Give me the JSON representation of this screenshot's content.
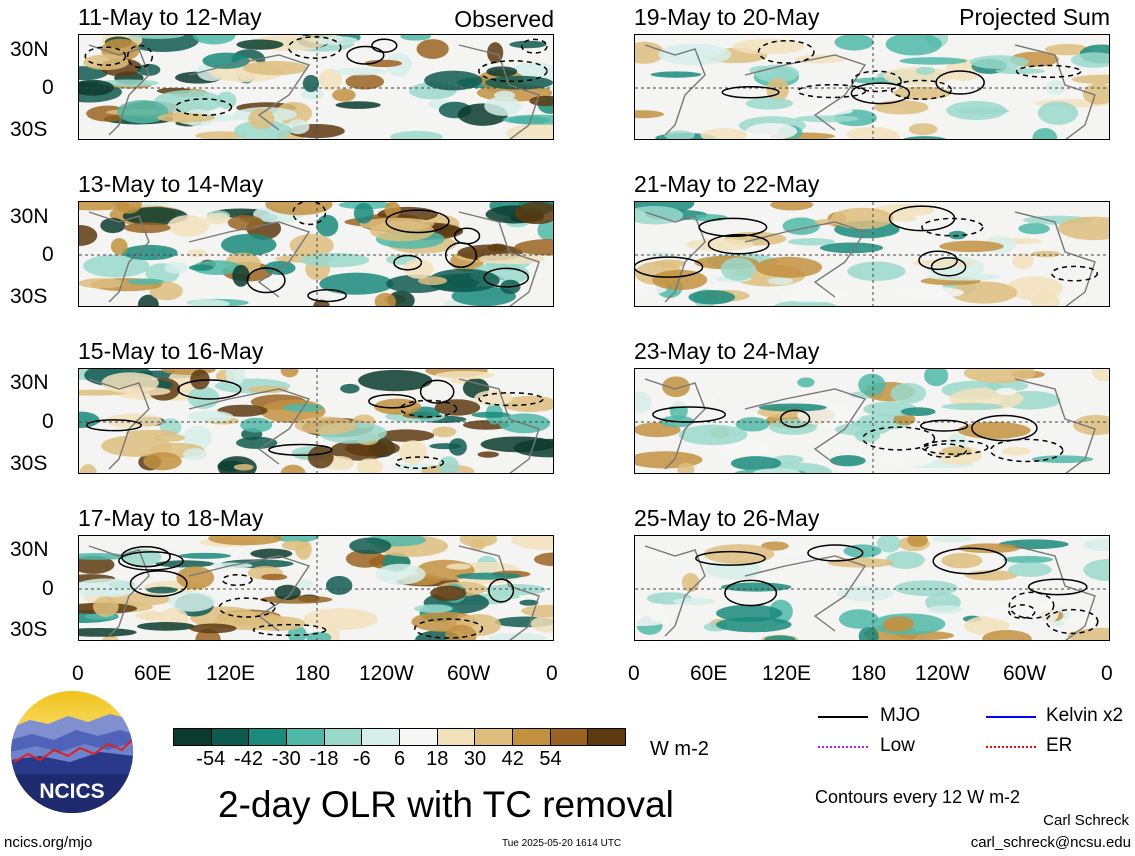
{
  "panels": [
    {
      "title": "11-May to 12-May",
      "corner": "Observed"
    },
    {
      "title": "13-May to 14-May",
      "corner": ""
    },
    {
      "title": "15-May to 16-May",
      "corner": ""
    },
    {
      "title": "17-May to 18-May",
      "corner": ""
    },
    {
      "title": "19-May to 20-May",
      "corner": "Projected Sum"
    },
    {
      "title": "21-May to 22-May",
      "corner": ""
    },
    {
      "title": "23-May to 24-May",
      "corner": ""
    },
    {
      "title": "25-May to 26-May",
      "corner": ""
    }
  ],
  "lat_ticks": [
    "30N",
    "0",
    "30S"
  ],
  "lon_ticks": [
    "0",
    "60E",
    "120E",
    "180",
    "120W",
    "60W",
    "0"
  ],
  "colorbar": {
    "labels": [
      "-54",
      "-42",
      "-30",
      "-18",
      "-6",
      "6",
      "18",
      "30",
      "42",
      "54"
    ],
    "colors": [
      "#0b3b2e",
      "#0f5a50",
      "#1a8a7c",
      "#4fb8a8",
      "#9ad8cc",
      "#d6efea",
      "#f6f6f4",
      "#f2e2bc",
      "#ddbe7e",
      "#c2913f",
      "#9a6321",
      "#5e3a10"
    ],
    "units": "W m-2"
  },
  "legend": {
    "mjo": "MJO",
    "kelvin": "Kelvin x2",
    "low": "Low",
    "er": "ER",
    "colors": {
      "mjo": "#000000",
      "kelvin": "#0000ff",
      "low": "#a020f0",
      "er": "#ff0000"
    }
  },
  "logo_text": "NCICS",
  "main_title": "2-day OLR with TC removal",
  "contours_note": "Contours every 12 W m-2",
  "footer": {
    "url": "ncics.org/mjo",
    "timestamp": "Tue 2025-05-20 1614 UTC",
    "author": "Carl Schreck",
    "email": "carl_schreck@ncsu.edu"
  }
}
